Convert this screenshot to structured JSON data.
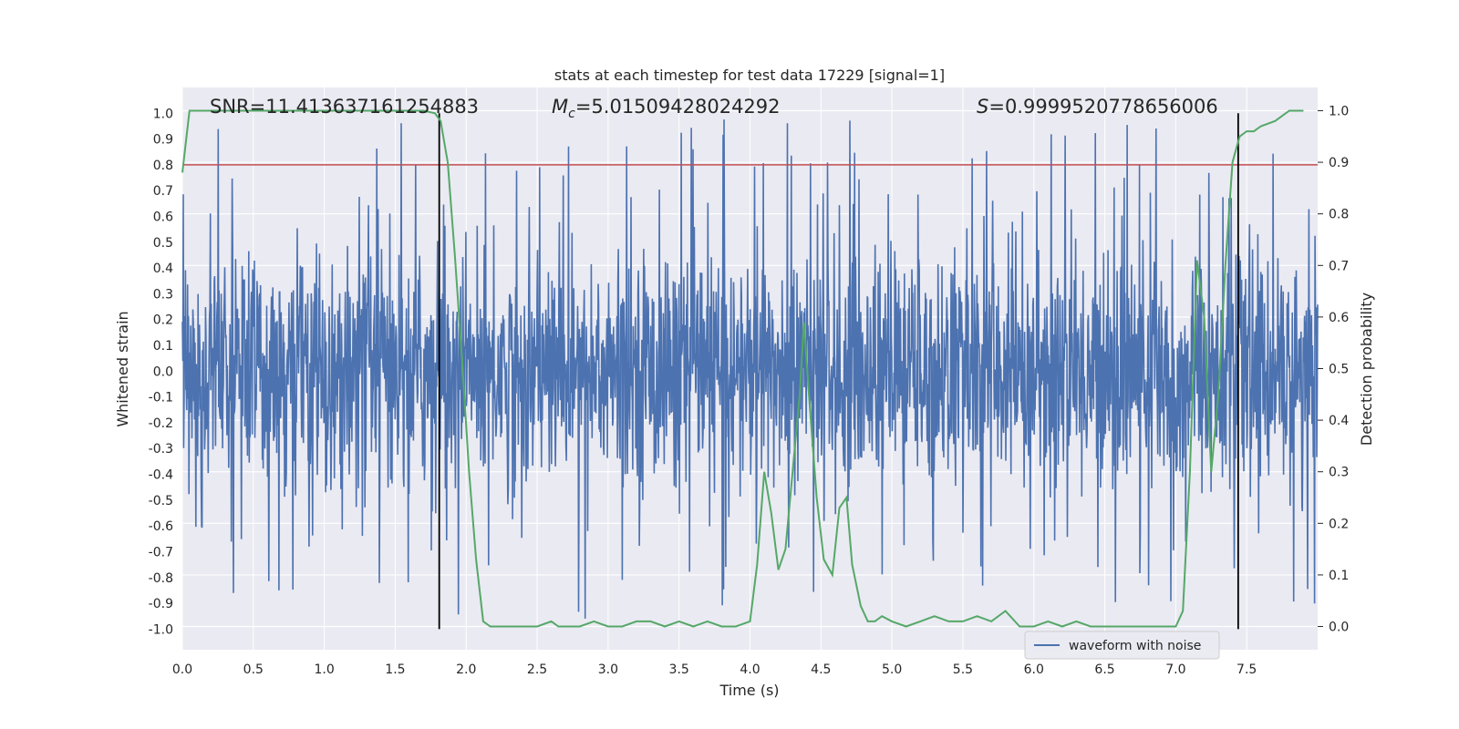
{
  "chart_data": {
    "type": "line",
    "title": "stats at each timestep for test data 17229 [signal=1]",
    "xlabel": "Time (s)",
    "ylabel": "Whitened strain",
    "y2label": "Detection probability",
    "xlim": [
      0.0,
      8.0
    ],
    "ylim": [
      -1.08,
      1.1
    ],
    "y2lim": [
      -0.045,
      1.045
    ],
    "xticks": [
      "0.0",
      "0.5",
      "1.0",
      "1.5",
      "2.0",
      "2.5",
      "3.0",
      "3.5",
      "4.0",
      "4.5",
      "5.0",
      "5.5",
      "6.0",
      "6.5",
      "7.0",
      "7.5"
    ],
    "yticks": [
      "1.0",
      "0.9",
      "0.8",
      "0.7",
      "0.6",
      "0.5",
      "0.4",
      "0.3",
      "0.2",
      "0.1",
      "0.0",
      "-0.1",
      "-0.2",
      "-0.3",
      "-0.4",
      "-0.5",
      "-0.6",
      "-0.7",
      "-0.8",
      "-0.9",
      "-1.0"
    ],
    "y2ticks": [
      "0.0",
      "0.1",
      "0.2",
      "0.3",
      "0.4",
      "0.5",
      "0.6",
      "0.7",
      "0.8",
      "0.9",
      "1.0"
    ],
    "annotations": {
      "snr": "SNR=11.413637161254883",
      "mc_symbol": "M",
      "mc_sub": "c",
      "mc_value": "=5.01509428024292",
      "s_symbol": "S",
      "s_value": "=0.9999520778656006"
    },
    "threshold": {
      "value": 0.8,
      "color": "#c44e52"
    },
    "signal_window": [
      1.81,
      7.44
    ],
    "series": [
      {
        "name": "waveform with noise",
        "color": "#4c72b0",
        "axis": "left",
        "description": "noisy whitened strain, amplitude roughly ±0.5 with spikes to ±1.0",
        "typical_amplitude": 0.45,
        "peak_amplitude": 1.0
      },
      {
        "name": "detection probability",
        "color": "#55a868",
        "axis": "right",
        "x": [
          0.0,
          0.05,
          0.2,
          0.5,
          1.0,
          1.5,
          1.7,
          1.78,
          1.82,
          1.87,
          1.92,
          1.97,
          2.02,
          2.07,
          2.12,
          2.17,
          2.3,
          2.5,
          2.6,
          2.65,
          2.7,
          2.8,
          2.9,
          3.0,
          3.1,
          3.2,
          3.3,
          3.4,
          3.5,
          3.6,
          3.7,
          3.8,
          3.9,
          4.0,
          4.05,
          4.1,
          4.15,
          4.2,
          4.25,
          4.3,
          4.35,
          4.38,
          4.42,
          4.47,
          4.52,
          4.58,
          4.63,
          4.68,
          4.72,
          4.78,
          4.83,
          4.88,
          4.93,
          5.0,
          5.1,
          5.2,
          5.3,
          5.4,
          5.5,
          5.6,
          5.7,
          5.8,
          5.9,
          6.0,
          6.1,
          6.2,
          6.3,
          6.4,
          6.5,
          6.7,
          7.0,
          7.05,
          7.1,
          7.15,
          7.2,
          7.25,
          7.3,
          7.35,
          7.4,
          7.45,
          7.5,
          7.55,
          7.6,
          7.7,
          7.8,
          7.85,
          7.9
        ],
        "values": [
          0.88,
          1.0,
          1.0,
          1.0,
          1.0,
          1.0,
          1.0,
          0.995,
          0.98,
          0.9,
          0.72,
          0.52,
          0.3,
          0.13,
          0.01,
          0.0,
          0.0,
          0.0,
          0.01,
          0.0,
          0.0,
          0.0,
          0.01,
          0.0,
          0.0,
          0.01,
          0.01,
          0.0,
          0.01,
          0.0,
          0.01,
          0.0,
          0.0,
          0.01,
          0.12,
          0.3,
          0.22,
          0.11,
          0.15,
          0.3,
          0.45,
          0.59,
          0.43,
          0.25,
          0.13,
          0.1,
          0.23,
          0.25,
          0.12,
          0.04,
          0.01,
          0.01,
          0.02,
          0.01,
          0.0,
          0.01,
          0.02,
          0.01,
          0.01,
          0.02,
          0.01,
          0.03,
          0.0,
          0.0,
          0.01,
          0.0,
          0.01,
          0.0,
          0.0,
          0.0,
          0.0,
          0.03,
          0.3,
          0.71,
          0.6,
          0.3,
          0.45,
          0.7,
          0.9,
          0.95,
          0.96,
          0.96,
          0.97,
          0.98,
          1.0,
          1.0,
          1.0
        ]
      }
    ],
    "legend": {
      "entries": [
        "waveform with noise"
      ],
      "placement": "lower-right"
    }
  }
}
